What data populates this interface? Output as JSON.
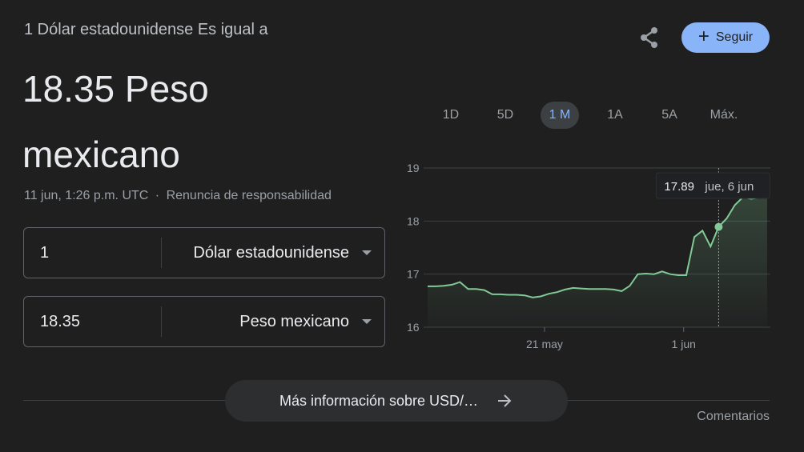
{
  "header": {
    "subtitle": "1 Dólar estadounidense Es igual a",
    "result": "18.35 Peso mexicano",
    "timestamp": "11 jun, 1:26 p.m. UTC",
    "separator": "·",
    "disclaimer": "Renuncia de responsabilidad"
  },
  "actions": {
    "share_icon": "share-icon",
    "follow_label": "Seguir",
    "follow_icon": "plus-icon"
  },
  "converter": {
    "from": {
      "amount": "1",
      "currency": "Dólar estadounidense"
    },
    "to": {
      "amount": "18.35",
      "currency": "Peso mexicano"
    }
  },
  "ranges": [
    {
      "label": "1D",
      "active": false
    },
    {
      "label": "5D",
      "active": false
    },
    {
      "label": "1 M",
      "active": true
    },
    {
      "label": "1A",
      "active": false
    },
    {
      "label": "5A",
      "active": false
    },
    {
      "label": "Máx.",
      "active": false
    }
  ],
  "chart_data": {
    "type": "area",
    "y_ticks": [
      "19",
      "18",
      "17",
      "16"
    ],
    "ylim": [
      16,
      19
    ],
    "x_tick_labels": [
      {
        "label": "21 may",
        "index": 21
      },
      {
        "label": "1 jun",
        "index": 46
      }
    ],
    "tooltip": {
      "value": "17.89",
      "date": "jue, 6 jun",
      "index": 58
    },
    "values": [
      16.77,
      16.77,
      16.78,
      16.8,
      16.85,
      16.72,
      16.72,
      16.7,
      16.62,
      16.62,
      16.61,
      16.61,
      16.6,
      16.56,
      16.58,
      16.63,
      16.66,
      16.71,
      16.74,
      16.73,
      16.72,
      16.72,
      16.72,
      16.71,
      16.68,
      16.78,
      17.0,
      17.01,
      17.0,
      17.05,
      17.0,
      16.98,
      16.98,
      17.7,
      17.82,
      17.52,
      17.89,
      18.05,
      18.3,
      18.45,
      18.42,
      18.44,
      18.44
    ],
    "line_color": "#81c995",
    "grid": true
  },
  "footer": {
    "more_label": "Más información sobre USD/…",
    "more_icon": "arrow-right-icon",
    "comments": "Comentarios"
  }
}
